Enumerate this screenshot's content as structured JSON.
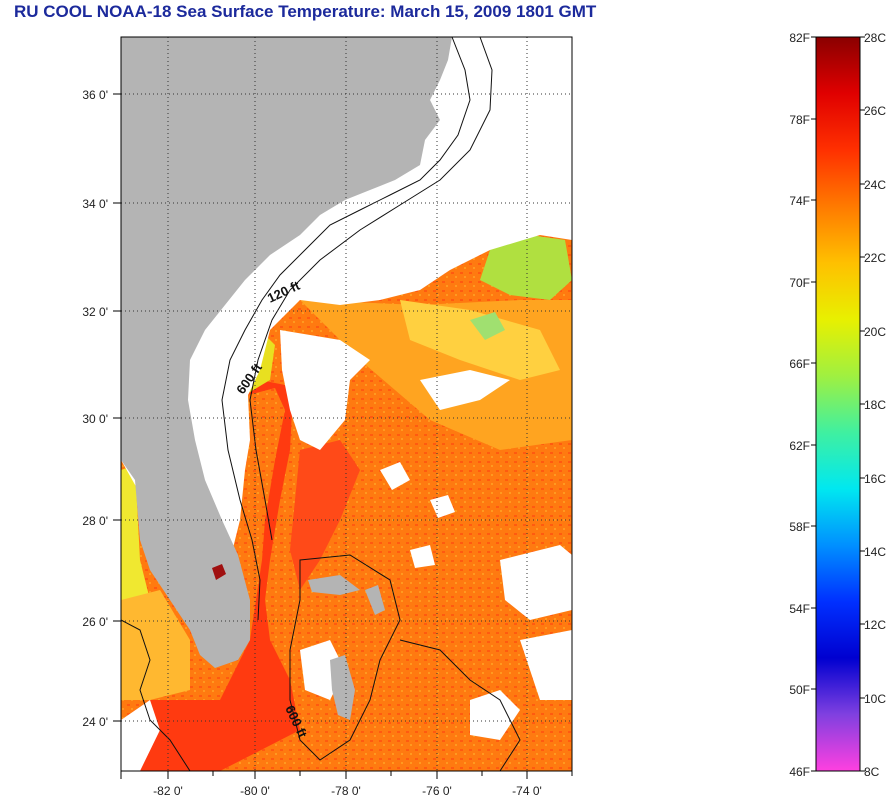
{
  "title": "RU COOL  NOAA-18  Sea Surface Temperature:  March 15, 2009 1801 GMT",
  "map": {
    "lat_labels": [
      "36 0'",
      "34 0'",
      "32 0'",
      "30 0'",
      "28 0'",
      "26 0'",
      "24 0'"
    ],
    "lon_labels": [
      "-82 0'",
      "-80 0'",
      "-78 0'",
      "-76 0'",
      "-74 0'"
    ],
    "contour_labels": [
      "120 ft",
      "600 ft",
      "600 ft"
    ],
    "colors": {
      "land": "#b4b4b4",
      "cloud": "#ffffff",
      "warm_water": "#ff7a10",
      "hot_water": "#ff3010",
      "mid_water": "#ffb020",
      "cool_water": "#c8e830"
    }
  },
  "colorbar": {
    "f_labels": [
      "82F",
      "78F",
      "74F",
      "70F",
      "66F",
      "62F",
      "58F",
      "54F",
      "50F",
      "46F"
    ],
    "c_labels": [
      "28C",
      "26C",
      "24C",
      "22C",
      "20C",
      "18C",
      "16C",
      "14C",
      "12C",
      "10C",
      "8C"
    ],
    "gradient_stops": [
      "#8a0000",
      "#e00000",
      "#ff3000",
      "#ff7a00",
      "#ffc000",
      "#e8f000",
      "#a0f040",
      "#40f0a0",
      "#00e8f0",
      "#0090ff",
      "#0030ff",
      "#0000d0",
      "#8040e0",
      "#ff40e0"
    ]
  }
}
